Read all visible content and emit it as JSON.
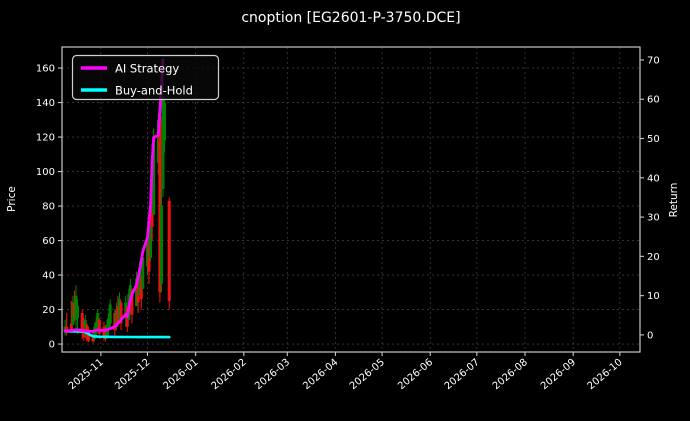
{
  "colors": {
    "background": "#000000",
    "text": "#ffffff",
    "grid": "#3d3d3d",
    "border": "#c8c8c8",
    "tick": "#c8c8c8",
    "ai_strategy": "#ff00ff",
    "buy_and_hold": "#00ffff",
    "candle_up": "#008000",
    "candle_down": "#ee1111",
    "legend_bg": "rgba(10,10,10,0.75)",
    "legend_border": "#cfcfcf"
  },
  "chart_data": {
    "type": "candlestick+line",
    "title": "cnoption [EG2601-P-3750.DCE]",
    "grid": true,
    "legend_position": "upper-left",
    "x_axis": {
      "tick_labels": [
        "2025-11",
        "2025-12",
        "2026-01",
        "2026-02",
        "2026-03",
        "2026-04",
        "2026-05",
        "2026-06",
        "2026-07",
        "2026-08",
        "2026-09",
        "2026-10"
      ],
      "tick_days": [
        25,
        55,
        86,
        117,
        145,
        176,
        206,
        237,
        267,
        298,
        329,
        359
      ],
      "domain_days": [
        0,
        372
      ],
      "label_rotation_deg": 40
    },
    "left_axis": {
      "label": "Price",
      "ticks": [
        0,
        20,
        40,
        60,
        80,
        100,
        120,
        140,
        160
      ],
      "range": [
        -4.6,
        172.2
      ]
    },
    "right_axis": {
      "label": "Return",
      "ticks": [
        0,
        10,
        20,
        30,
        40,
        50,
        60,
        70
      ],
      "range": [
        -4.35,
        73.3
      ]
    },
    "candles_format": "[day,open,high,low,close] ; price on left axis ; close>=open is green",
    "candles": [
      [
        2,
        7,
        14,
        5,
        10
      ],
      [
        3,
        10,
        18,
        5,
        7
      ],
      [
        6,
        12,
        25,
        8,
        9
      ],
      [
        7,
        11,
        28,
        11,
        24
      ],
      [
        8,
        24,
        31,
        13,
        16
      ],
      [
        9,
        14,
        34,
        8,
        28
      ],
      [
        10,
        15,
        26,
        6,
        22
      ],
      [
        13,
        18,
        20,
        3,
        8
      ],
      [
        14,
        10,
        15,
        2,
        4
      ],
      [
        15,
        5,
        17,
        4,
        14
      ],
      [
        16,
        11,
        12,
        1.5,
        3
      ],
      [
        17,
        8,
        10,
        1,
        2
      ],
      [
        20,
        6,
        8,
        0.8,
        1.5
      ],
      [
        21,
        3,
        12,
        2,
        10
      ],
      [
        22,
        8,
        16,
        4,
        13
      ],
      [
        23,
        10,
        20,
        6,
        18
      ],
      [
        24,
        14,
        15,
        3,
        6
      ],
      [
        27,
        10,
        13,
        2,
        4
      ],
      [
        28,
        8,
        11,
        1.5,
        3
      ],
      [
        29,
        5,
        14,
        3,
        11
      ],
      [
        30,
        9,
        18,
        5,
        15
      ],
      [
        31,
        12,
        26,
        8,
        23
      ],
      [
        34,
        18,
        20,
        5,
        8
      ],
      [
        35,
        10,
        24,
        8,
        20
      ],
      [
        36,
        22,
        28,
        10,
        13
      ],
      [
        37,
        14,
        30,
        12,
        26
      ],
      [
        38,
        24,
        25,
        8,
        12
      ],
      [
        41,
        15,
        28,
        10,
        24
      ],
      [
        42,
        21,
        22,
        7,
        10
      ],
      [
        43,
        14,
        32,
        14,
        29
      ],
      [
        44,
        20,
        38,
        18,
        34
      ],
      [
        45,
        30,
        32,
        12,
        17
      ],
      [
        48,
        22,
        42,
        22,
        38
      ],
      [
        49,
        35,
        36,
        18,
        24
      ],
      [
        50,
        28,
        48,
        28,
        44
      ],
      [
        51,
        38,
        40,
        20,
        26
      ],
      [
        52,
        32,
        55,
        32,
        50
      ],
      [
        55,
        45,
        68,
        40,
        62
      ],
      [
        56,
        58,
        60,
        35,
        42
      ],
      [
        57,
        50,
        85,
        48,
        78
      ],
      [
        58,
        80,
        116,
        60,
        68
      ],
      [
        59,
        75,
        125,
        75,
        118
      ],
      [
        62,
        105,
        134,
        98,
        130
      ],
      [
        63,
        132,
        136,
        24,
        30
      ],
      [
        64,
        35,
        90,
        30,
        80
      ],
      [
        65,
        90,
        160,
        85,
        142
      ],
      [
        66,
        118,
        144,
        111,
        140
      ],
      [
        69,
        83,
        85,
        20,
        25
      ]
    ],
    "series": [
      {
        "name": "AI Strategy",
        "axis": "right",
        "points": [
          [
            2,
            1.0
          ],
          [
            6,
            1.15
          ],
          [
            9,
            1.3
          ],
          [
            13,
            1.1
          ],
          [
            16,
            0.95
          ],
          [
            20,
            0.9
          ],
          [
            23,
            1.25
          ],
          [
            27,
            1.1
          ],
          [
            29,
            1.3
          ],
          [
            31,
            1.6
          ],
          [
            34,
            2.1
          ],
          [
            36,
            3.0
          ],
          [
            37,
            3.3
          ],
          [
            38,
            3.9
          ],
          [
            41,
            5.2
          ],
          [
            42,
            4.7
          ],
          [
            43,
            7.0
          ],
          [
            44,
            9.0
          ],
          [
            45,
            10.3
          ],
          [
            48,
            12.8
          ],
          [
            49,
            14.6
          ],
          [
            50,
            16.6
          ],
          [
            51,
            18.7
          ],
          [
            52,
            21.2
          ],
          [
            55,
            24.8
          ],
          [
            56,
            28.9
          ],
          [
            57,
            33.2
          ],
          [
            58,
            44.0
          ],
          [
            59,
            50.3
          ],
          [
            62,
            50.8
          ],
          [
            63,
            57.0
          ],
          [
            64,
            63.0
          ],
          [
            65,
            70.0
          ]
        ]
      },
      {
        "name": "Buy-and-Hold",
        "axis": "right",
        "points": [
          [
            2,
            0.95
          ],
          [
            8,
            0.9
          ],
          [
            14,
            0.85
          ],
          [
            16,
            0.5
          ],
          [
            18,
            0.0
          ],
          [
            20,
            -0.35
          ],
          [
            24,
            -0.45
          ],
          [
            34,
            -0.5
          ],
          [
            50,
            -0.55
          ],
          [
            69,
            -0.55
          ]
        ]
      }
    ]
  }
}
